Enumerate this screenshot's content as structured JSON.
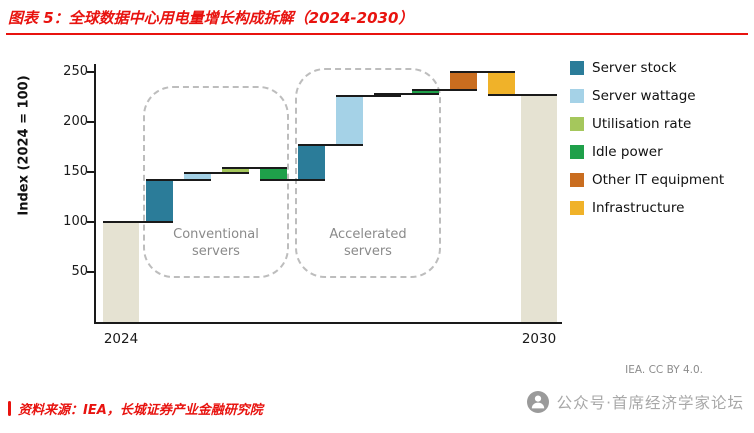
{
  "title": "图表 5：全球数据中心用电量增长构成拆解（2024-2030）",
  "attribution": "IEA. CC BY 4.0.",
  "watermark": "公众号·首席经济学家论坛",
  "source_note": "资料来源：IEA，长城证券产业金融研究院",
  "colors": {
    "title_red": "#e8130f",
    "axis_black": "#1a1a1a",
    "group_label_gray": "#8a8a8a",
    "watermark_gray": "#a8a8a8"
  },
  "chart_data": {
    "type": "waterfall",
    "ylabel": "Index (2024 = 100)",
    "ylim": [
      0,
      250
    ],
    "yticks": [
      50,
      100,
      150,
      200,
      250
    ],
    "x_labels": [
      "2024",
      "2030"
    ],
    "grid": false,
    "legend_position": "right",
    "total_color": "#e5e2d2",
    "legend": [
      {
        "label": "Server stock",
        "color": "#2b7c99"
      },
      {
        "label": "Server wattage",
        "color": "#a5d2e7"
      },
      {
        "label": "Utilisation rate",
        "color": "#a5c75c"
      },
      {
        "label": "Idle power",
        "color": "#1fa04a"
      },
      {
        "label": "Other IT equipment",
        "color": "#c96d1f"
      },
      {
        "label": "Infrastructure",
        "color": "#f0b229"
      }
    ],
    "groups": [
      {
        "label": "Conventional servers"
      },
      {
        "label": "Accelerated servers"
      }
    ],
    "steps": [
      {
        "label": "2024",
        "type": "total",
        "value": 100
      },
      {
        "label": "Server stock",
        "type": "delta",
        "value": 42,
        "legend": 0,
        "group": 0
      },
      {
        "label": "Server wattage",
        "type": "delta",
        "value": 7,
        "legend": 1,
        "group": 0
      },
      {
        "label": "Utilisation rate",
        "type": "delta",
        "value": 5,
        "legend": 2,
        "group": 0
      },
      {
        "label": "Idle power",
        "type": "delta",
        "value": -12,
        "legend": 3,
        "group": 0
      },
      {
        "label": "Server stock",
        "type": "delta",
        "value": 35,
        "legend": 0,
        "group": 1
      },
      {
        "label": "Server wattage",
        "type": "delta",
        "value": 49,
        "legend": 1,
        "group": 1
      },
      {
        "label": "Utilisation rate",
        "type": "delta",
        "value": 2,
        "legend": 2,
        "group": 1
      },
      {
        "label": "Idle power",
        "type": "delta",
        "value": 4,
        "legend": 3,
        "group": 1
      },
      {
        "label": "Other IT equipment",
        "type": "delta",
        "value": 18,
        "legend": 4
      },
      {
        "label": "Infrastructure",
        "type": "delta",
        "value": -23,
        "legend": 5
      },
      {
        "label": "2030",
        "type": "total",
        "value": 227
      }
    ]
  }
}
